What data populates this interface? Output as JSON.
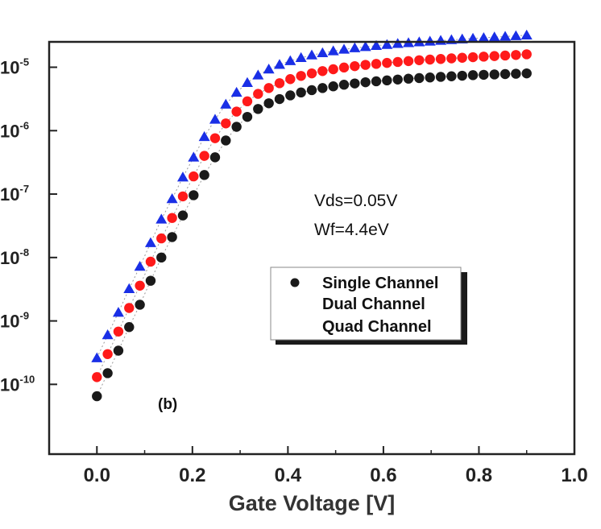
{
  "chart_data": {
    "type": "scatter",
    "title": "",
    "xlabel": "Gate Voltage [V]",
    "ylabel": "",
    "xlim": [
      -0.1,
      1.0
    ],
    "ylim_log10": [
      -11.1,
      -4.6
    ],
    "yscale": "log",
    "x_ticks": [
      {
        "value": 0.0,
        "label": "0.0"
      },
      {
        "value": 0.2,
        "label": "0.2"
      },
      {
        "value": 0.4,
        "label": "0.4"
      },
      {
        "value": 0.6,
        "label": "0.6"
      },
      {
        "value": 0.8,
        "label": "0.8"
      },
      {
        "value": 1.0,
        "label": "1.0"
      }
    ],
    "y_ticks": [
      {
        "value": 1e-05,
        "base": "10",
        "exp": "-5"
      },
      {
        "value": 1e-06,
        "base": "10",
        "exp": "-6"
      },
      {
        "value": 1e-07,
        "base": "10",
        "exp": "-7"
      },
      {
        "value": 1e-08,
        "base": "10",
        "exp": "-8"
      },
      {
        "value": 1e-09,
        "base": "10",
        "exp": "-9"
      },
      {
        "value": 1e-10,
        "base": "10",
        "exp": "-10"
      }
    ],
    "annotations": [
      "Vds=0.05V",
      "Wf=4.4eV"
    ],
    "panel_label": "(b)",
    "legend_position": "center-right",
    "series": [
      {
        "name": "Single Channel",
        "marker": "circle",
        "color": "#1a1a1a",
        "x": [
          0.0,
          0.0225,
          0.045,
          0.0675,
          0.09,
          0.1125,
          0.135,
          0.1575,
          0.18,
          0.2025,
          0.225,
          0.2475,
          0.27,
          0.2925,
          0.315,
          0.3375,
          0.36,
          0.3825,
          0.405,
          0.4275,
          0.45,
          0.4725,
          0.495,
          0.5175,
          0.54,
          0.5625,
          0.585,
          0.6075,
          0.63,
          0.6525,
          0.675,
          0.6975,
          0.72,
          0.7425,
          0.765,
          0.7875,
          0.81,
          0.8325,
          0.855,
          0.8775,
          0.9
        ],
        "y": [
          6.5e-11,
          1.5e-10,
          3.4e-10,
          8e-10,
          1.8e-09,
          4.3e-09,
          1e-08,
          2.1e-08,
          4.6e-08,
          9.6e-08,
          2e-07,
          3.8e-07,
          7e-07,
          1.15e-06,
          1.65e-06,
          2.2e-06,
          2.7e-06,
          3.15e-06,
          3.6e-06,
          4e-06,
          4.35e-06,
          4.7e-06,
          5e-06,
          5.3e-06,
          5.55e-06,
          5.8e-06,
          6e-06,
          6.2e-06,
          6.4e-06,
          6.6e-06,
          6.75e-06,
          6.9e-06,
          7.05e-06,
          7.2e-06,
          7.35e-06,
          7.5e-06,
          7.6e-06,
          7.7e-06,
          7.8e-06,
          7.9e-06,
          8e-06
        ]
      },
      {
        "name": "Dual Channel",
        "marker": "circle",
        "color": "#ff1a1a",
        "x": [
          0.0,
          0.0225,
          0.045,
          0.0675,
          0.09,
          0.1125,
          0.135,
          0.1575,
          0.18,
          0.2025,
          0.225,
          0.2475,
          0.27,
          0.2925,
          0.315,
          0.3375,
          0.36,
          0.3825,
          0.405,
          0.4275,
          0.45,
          0.4725,
          0.495,
          0.5175,
          0.54,
          0.5625,
          0.585,
          0.6075,
          0.63,
          0.6525,
          0.675,
          0.6975,
          0.72,
          0.7425,
          0.765,
          0.7875,
          0.81,
          0.8325,
          0.855,
          0.8775,
          0.9
        ],
        "y": [
          1.3e-10,
          3e-10,
          6.8e-10,
          1.6e-09,
          3.6e-09,
          8.6e-09,
          2e-08,
          4.2e-08,
          9.2e-08,
          1.9e-07,
          4e-07,
          7.6e-07,
          1.3e-06,
          2e-06,
          2.9e-06,
          3.8e-06,
          4.7e-06,
          5.6e-06,
          6.5e-06,
          7.3e-06,
          8e-06,
          8.7e-06,
          9.3e-06,
          9.9e-06,
          1.04e-05,
          1.09e-05,
          1.13e-05,
          1.17e-05,
          1.21e-05,
          1.25e-05,
          1.29e-05,
          1.32e-05,
          1.35e-05,
          1.38e-05,
          1.41e-05,
          1.44e-05,
          1.47e-05,
          1.5e-05,
          1.53e-05,
          1.56e-05,
          1.6e-05
        ]
      },
      {
        "name": "Quad Channel",
        "marker": "triangle",
        "color": "#1a2fe6",
        "x": [
          0.0,
          0.0225,
          0.045,
          0.0675,
          0.09,
          0.1125,
          0.135,
          0.1575,
          0.18,
          0.2025,
          0.225,
          0.2475,
          0.27,
          0.2925,
          0.315,
          0.3375,
          0.36,
          0.3825,
          0.405,
          0.4275,
          0.45,
          0.4725,
          0.495,
          0.5175,
          0.54,
          0.5625,
          0.585,
          0.6075,
          0.63,
          0.6525,
          0.675,
          0.6975,
          0.72,
          0.7425,
          0.765,
          0.7875,
          0.81,
          0.8325,
          0.855,
          0.8775,
          0.9
        ],
        "y": [
          2.6e-10,
          6e-10,
          1.36e-09,
          3.2e-09,
          7.2e-09,
          1.7e-08,
          4e-08,
          8.4e-08,
          1.84e-07,
          3.8e-07,
          8e-07,
          1.5e-06,
          2.6e-06,
          4e-06,
          5.7e-06,
          7.5e-06,
          9.3e-06,
          1.1e-05,
          1.26e-05,
          1.41e-05,
          1.55e-05,
          1.68e-05,
          1.8e-05,
          1.91e-05,
          2.01e-05,
          2.1e-05,
          2.19e-05,
          2.27e-05,
          2.35e-05,
          2.42e-05,
          2.49e-05,
          2.56e-05,
          2.63e-05,
          2.7e-05,
          2.77e-05,
          2.84e-05,
          2.91e-05,
          2.98e-05,
          3.05e-05,
          3.12e-05,
          3.2e-05
        ]
      }
    ]
  }
}
